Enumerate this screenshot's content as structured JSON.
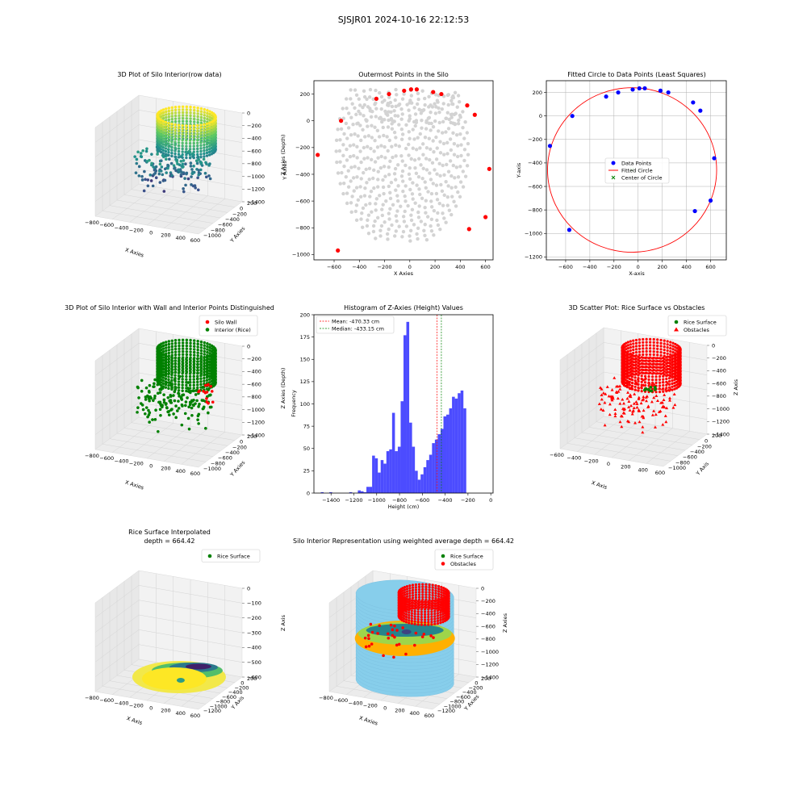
{
  "figure": {
    "suptitle": "SJSJR01 2024-10-16 22:12:53",
    "colors": {
      "wall": "#ff0000",
      "rice": "#008000",
      "scatter_gray": "#d3d3d3",
      "cylinder": "#87ceeb",
      "histogram_bar": "#0000ff",
      "mean_line": "#ff0000",
      "median_line": "#008000",
      "circle": "#ff0000",
      "data_points": "#0000ff",
      "center_marker": "#008000",
      "pane": "#f2f2f2",
      "viridis": [
        "#440154",
        "#3b528b",
        "#21918c",
        "#5ec962",
        "#fde725"
      ]
    },
    "panels": {
      "p1": {
        "title": "3D Plot of Silo Interior(row data)",
        "xlabel": "X Axies",
        "ylabel": "Y Axies",
        "zlabel": "Z Axies (Depth)",
        "xticks": [
          "−800",
          "−600",
          "−400",
          "−200",
          "0",
          "200",
          "400",
          "600"
        ],
        "yticks": [
          "200",
          "0",
          "−200",
          "−400",
          "−600",
          "−800",
          "−1000"
        ],
        "zticks": [
          "0",
          "−200",
          "−400",
          "−600",
          "−800",
          "−1000",
          "−1200",
          "−1400"
        ]
      },
      "p2": {
        "title": "Outermost Points in the Silo",
        "xlabel": "X Axies",
        "ylabel": "Y Axies",
        "xticks": [
          "−600",
          "−400",
          "−200",
          "0",
          "200",
          "400",
          "600"
        ],
        "yticks": [
          "200",
          "0",
          "−200",
          "−400",
          "−600",
          "−800",
          "−1000"
        ]
      },
      "p3": {
        "title": "Fitted Circle to Data Points (Least Squares)",
        "xlabel": "X-axis",
        "ylabel": "Y-axis",
        "xticks": [
          "−600",
          "−400",
          "−200",
          "0",
          "200",
          "400",
          "600"
        ],
        "yticks": [
          "200",
          "0",
          "−200",
          "−400",
          "−600",
          "−800",
          "−1000",
          "−1200"
        ],
        "legend": [
          "Data Points",
          "Fitted Circle",
          "Center of Circle"
        ]
      },
      "p4": {
        "title": "3D Plot of Silo Interior with Wall and Interior Points Distinguished",
        "xlabel": "X Axies",
        "ylabel": "Y Axies",
        "zlabel": "Z Axies (Depth)",
        "xticks": [
          "−800",
          "−600",
          "−400",
          "−200",
          "0",
          "200",
          "400",
          "600"
        ],
        "yticks": [
          "200",
          "0",
          "−200",
          "−400",
          "−600",
          "−800",
          "−1000"
        ],
        "zticks": [
          "0",
          "−200",
          "−400",
          "−600",
          "−800",
          "−1000",
          "−1200",
          "−1400"
        ],
        "legend": [
          "Silo Wall",
          "Interior (Rice)"
        ]
      },
      "p5": {
        "title": "Histogram of Z-Axies (Height) Values",
        "xlabel": "Height (cm)",
        "ylabel": "Frequency",
        "xticks": [
          "−1400",
          "−1200",
          "−1000",
          "−800",
          "−600",
          "−400",
          "−200",
          "0"
        ],
        "yticks": [
          "0",
          "25",
          "50",
          "75",
          "100",
          "125",
          "150",
          "175",
          "200"
        ],
        "legend": [
          "Mean: -470.33 cm",
          "Median: -433.15 cm"
        ]
      },
      "p6": {
        "title": "3D Scatter Plot: Rice Surface vs Obstacles",
        "xlabel": "X Axis",
        "ylabel": "Y Axis",
        "zlabel": "Z Axis",
        "xticks": [
          "−600",
          "−400",
          "−200",
          "0",
          "200",
          "400",
          "600"
        ],
        "yticks": [
          "200",
          "0",
          "−200",
          "−400",
          "−600",
          "−800",
          "−1000"
        ],
        "zticks": [
          "0",
          "−200",
          "−400",
          "−600",
          "−800",
          "−1000",
          "−1200",
          "−1400"
        ],
        "legend": [
          "Rice Surface",
          "Obstacles"
        ]
      },
      "p7": {
        "title": "Rice Surface Interpolated",
        "subtitle": "depth = 664.42",
        "xlabel": "X Axis",
        "ylabel": "Y Axis",
        "zlabel": "Z Axis",
        "xticks": [
          "−800",
          "−600",
          "−400",
          "−200",
          "0",
          "200",
          "400",
          "600"
        ],
        "yticks": [
          "200",
          "0",
          "−200",
          "−400",
          "−600",
          "−800",
          "−1000",
          "−1200"
        ],
        "zticks": [
          "0",
          "−100",
          "−200",
          "−300",
          "−400",
          "−500",
          "−600"
        ],
        "legend": [
          "Rice Surface"
        ]
      },
      "p8": {
        "title": "Silo Interior Representation using weighted average depth = 664.42",
        "xlabel": "X Axies",
        "ylabel": "Y Axies",
        "zlabel": "Z Axies",
        "xticks": [
          "−800",
          "−600",
          "−400",
          "−200",
          "0",
          "200",
          "400",
          "600"
        ],
        "yticks": [
          "200",
          "0",
          "−200",
          "−400",
          "−600",
          "−800",
          "−1000",
          "−1200"
        ],
        "zticks": [
          "0",
          "−200",
          "−400",
          "−600",
          "−800",
          "−1000",
          "−1200",
          "−1400"
        ],
        "legend": [
          "Rice Surface",
          "Obstacles"
        ]
      }
    }
  },
  "chart_data": [
    {
      "type": "scatter",
      "panel": "p2",
      "title": "Outermost Points in the Silo",
      "xlabel": "X Axies",
      "ylabel": "Y Axies",
      "xlim": [
        -760,
        660
      ],
      "ylim": [
        -1040,
        300
      ],
      "series": [
        {
          "color": "#ff0000",
          "x": [
            -730,
            -570,
            -545,
            -265,
            -165,
            -45,
            10,
            55,
            185,
            250,
            455,
            470,
            515,
            600,
            630
          ],
          "y": [
            -255,
            -970,
            0,
            165,
            200,
            225,
            235,
            235,
            215,
            200,
            115,
            -810,
            45,
            -720,
            -360
          ]
        }
      ]
    },
    {
      "type": "scatter",
      "panel": "p3",
      "title": "Fitted Circle to Data Points (Least Squares)",
      "xlabel": "X-axis",
      "ylabel": "Y-axis",
      "xlim": [
        -760,
        730
      ],
      "ylim": [
        -1225,
        300
      ],
      "series": [
        {
          "name": "Data Points",
          "color": "#0000ff",
          "x": [
            -730,
            -570,
            -545,
            -265,
            -165,
            -45,
            10,
            55,
            185,
            250,
            455,
            470,
            515,
            600,
            630
          ],
          "y": [
            -255,
            -970,
            0,
            165,
            200,
            225,
            235,
            235,
            215,
            200,
            115,
            -810,
            45,
            -720,
            -360
          ]
        }
      ],
      "fitted_circle": {
        "name": "Fitted Circle",
        "center": [
          -50,
          -460
        ],
        "radius": 700
      },
      "center_point": {
        "name": "Center of Circle",
        "x": -50,
        "y": -460
      }
    },
    {
      "type": "bar",
      "panel": "p5",
      "title": "Histogram of Z-Axies (Height) Values",
      "xlabel": "Height (cm)",
      "ylabel": "Frequency",
      "xlim": [
        -1550,
        20
      ],
      "ylim": [
        0,
        200
      ],
      "bins": {
        "starts": [
          -1490,
          -1465,
          -1440,
          -1415,
          -1390,
          -1365,
          -1340,
          -1315,
          -1290,
          -1265,
          -1240,
          -1215,
          -1190,
          -1165,
          -1140,
          -1115,
          -1090,
          -1065,
          -1040,
          -1015,
          -990,
          -965,
          -940,
          -915,
          -890,
          -865,
          -840,
          -815,
          -790,
          -765,
          -740,
          -715,
          -690,
          -665,
          -640,
          -615,
          -590,
          -565,
          -540,
          -515,
          -490,
          -465,
          -440,
          -415,
          -390,
          -365,
          -340,
          -315,
          -290,
          -265,
          -240,
          -215,
          -190,
          -165,
          -140,
          -115,
          -90
        ],
        "width": 25,
        "counts": [
          1,
          0,
          0,
          1,
          0,
          0,
          0,
          0,
          0,
          0,
          1,
          0,
          0,
          3,
          2,
          1,
          7,
          7,
          42,
          39,
          23,
          37,
          33,
          47,
          49,
          90,
          47,
          52,
          103,
          177,
          192,
          79,
          52,
          25,
          15,
          21,
          29,
          37,
          43,
          56,
          60,
          66,
          72,
          86,
          88,
          95,
          108,
          106,
          112,
          115,
          95,
          0,
          0,
          0,
          0,
          0,
          0
        ]
      },
      "mean": {
        "label": "Mean: -470.33 cm",
        "value": -470.33,
        "color": "#ff0000"
      },
      "median": {
        "label": "Median: -433.15 cm",
        "value": -433.15,
        "color": "#008000"
      }
    }
  ]
}
